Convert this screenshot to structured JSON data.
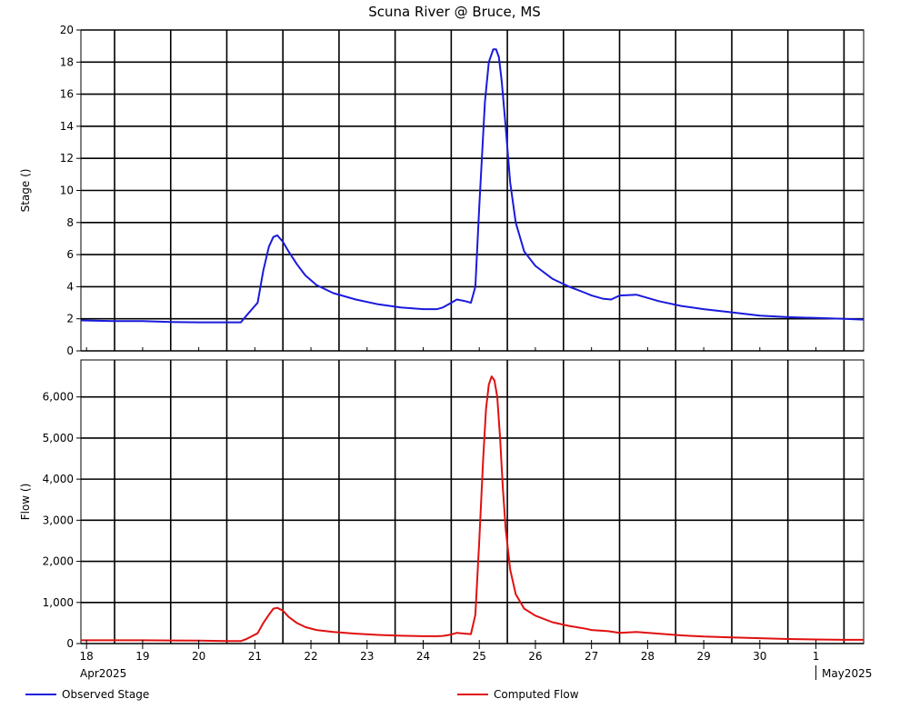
{
  "title": "Scuna River @ Bruce, MS",
  "x_ticks": [
    {
      "day": 18,
      "label": "18"
    },
    {
      "day": 19,
      "label": "19"
    },
    {
      "day": 20,
      "label": "20"
    },
    {
      "day": 21,
      "label": "21"
    },
    {
      "day": 22,
      "label": "22"
    },
    {
      "day": 23,
      "label": "23"
    },
    {
      "day": 24,
      "label": "24"
    },
    {
      "day": 25,
      "label": "25"
    },
    {
      "day": 26,
      "label": "26"
    },
    {
      "day": 27,
      "label": "27"
    },
    {
      "day": 28,
      "label": "28"
    },
    {
      "day": 29,
      "label": "29"
    },
    {
      "day": 30,
      "label": "30"
    },
    {
      "day": 31,
      "label": "1"
    }
  ],
  "month_labels": {
    "start": "Apr2025",
    "end": "May2025"
  },
  "legend": {
    "stage": "Observed Stage",
    "flow": "Computed Flow"
  },
  "colors": {
    "stage": "#1a1adc",
    "flow": "#e01010"
  },
  "chart_data": [
    {
      "type": "line",
      "ylabel": "Stage ()",
      "ylim": [
        0,
        20
      ],
      "yticks": [
        0,
        2,
        4,
        6,
        8,
        10,
        12,
        14,
        16,
        18,
        20
      ],
      "ytick_labels": [
        "0",
        "2",
        "4",
        "6",
        "8",
        "10",
        "12",
        "14",
        "16",
        "18",
        "20"
      ],
      "xlim_days": [
        17.9,
        31.85
      ],
      "grid": true,
      "series": [
        {
          "name": "Observed Stage",
          "x": [
            17.9,
            18.5,
            19.0,
            19.5,
            20.0,
            20.5,
            20.75,
            20.85,
            20.95,
            21.05,
            21.15,
            21.25,
            21.33,
            21.4,
            21.5,
            21.6,
            21.75,
            21.9,
            22.1,
            22.4,
            22.8,
            23.2,
            23.6,
            24.0,
            24.25,
            24.35,
            24.5,
            24.6,
            24.75,
            24.85,
            24.93,
            25.0,
            25.1,
            25.17,
            25.25,
            25.3,
            25.35,
            25.4,
            25.47,
            25.55,
            25.65,
            25.8,
            26.0,
            26.3,
            26.6,
            26.9,
            27.0,
            27.2,
            27.35,
            27.5,
            27.8,
            28.2,
            28.6,
            29.0,
            29.5,
            30.0,
            30.5,
            31.0,
            31.5,
            31.85
          ],
          "y": [
            1.9,
            1.85,
            1.85,
            1.8,
            1.78,
            1.78,
            1.78,
            2.2,
            2.6,
            3.0,
            5.0,
            6.5,
            7.1,
            7.2,
            6.8,
            6.2,
            5.4,
            4.7,
            4.1,
            3.6,
            3.2,
            2.9,
            2.7,
            2.6,
            2.6,
            2.7,
            3.0,
            3.2,
            3.1,
            3.0,
            4.0,
            9.0,
            15.5,
            18.0,
            18.8,
            18.8,
            18.3,
            16.8,
            14.0,
            10.5,
            8.0,
            6.2,
            5.3,
            4.5,
            4.0,
            3.6,
            3.45,
            3.25,
            3.2,
            3.45,
            3.5,
            3.1,
            2.8,
            2.6,
            2.4,
            2.2,
            2.1,
            2.05,
            2.0,
            1.95
          ]
        }
      ]
    },
    {
      "type": "line",
      "ylabel": "Flow ()",
      "ylim": [
        0,
        6900
      ],
      "yticks": [
        0,
        1000,
        2000,
        3000,
        4000,
        5000,
        6000
      ],
      "ytick_labels": [
        "0",
        "1,000",
        "2,000",
        "3,000",
        "4,000",
        "5,000",
        "6,000"
      ],
      "xlim_days": [
        17.9,
        31.85
      ],
      "grid": true,
      "series": [
        {
          "name": "Computed Flow",
          "x": [
            17.9,
            18.5,
            19.0,
            19.5,
            20.0,
            20.5,
            20.75,
            20.85,
            20.95,
            21.05,
            21.15,
            21.25,
            21.33,
            21.4,
            21.5,
            21.6,
            21.75,
            21.9,
            22.1,
            22.4,
            22.8,
            23.2,
            23.6,
            24.0,
            24.25,
            24.35,
            24.5,
            24.6,
            24.75,
            24.85,
            24.93,
            25.0,
            25.07,
            25.12,
            25.17,
            25.22,
            25.27,
            25.32,
            25.37,
            25.42,
            25.47,
            25.55,
            25.65,
            25.8,
            26.0,
            26.3,
            26.6,
            26.9,
            27.0,
            27.3,
            27.5,
            27.8,
            28.2,
            28.6,
            29.0,
            29.5,
            30.0,
            30.5,
            31.0,
            31.5,
            31.85
          ],
          "y": [
            80,
            80,
            80,
            75,
            70,
            60,
            60,
            110,
            180,
            250,
            500,
            700,
            850,
            870,
            800,
            650,
            500,
            400,
            330,
            280,
            240,
            210,
            190,
            180,
            180,
            185,
            220,
            260,
            240,
            230,
            700,
            2500,
            4500,
            5700,
            6300,
            6500,
            6400,
            6000,
            5000,
            3800,
            2800,
            1800,
            1200,
            850,
            680,
            520,
            430,
            360,
            330,
            300,
            260,
            280,
            240,
            200,
            170,
            150,
            130,
            110,
            100,
            90,
            90
          ]
        }
      ]
    }
  ]
}
